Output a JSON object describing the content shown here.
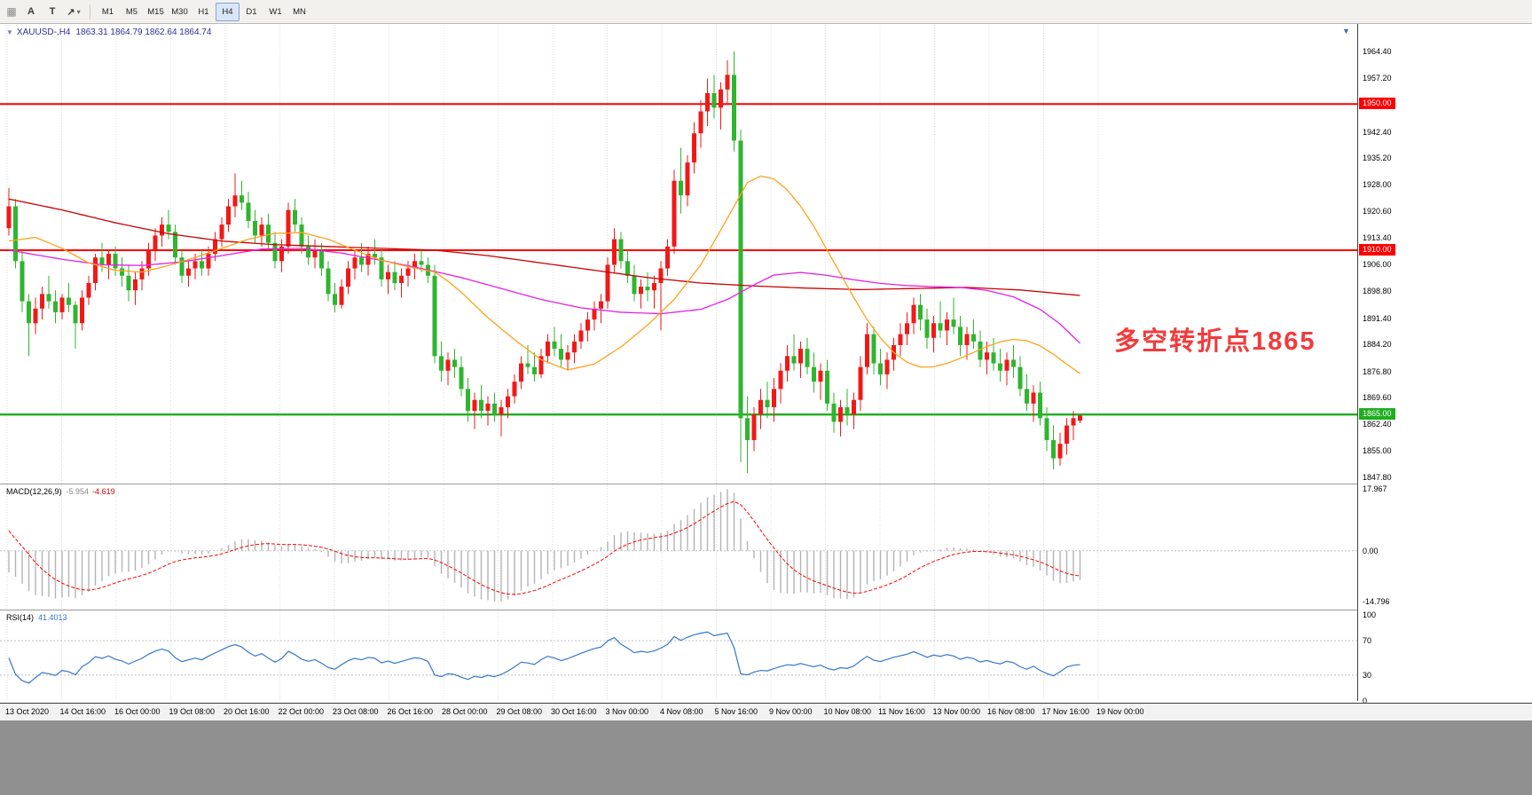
{
  "toolbar": {
    "tools": [
      {
        "name": "drag-grip",
        "glyph": "▦"
      },
      {
        "name": "text-tool",
        "glyph": "A"
      },
      {
        "name": "text-label-tool",
        "glyph": "T"
      },
      {
        "name": "arrows-tool",
        "glyph": "↗"
      }
    ],
    "caret": "▾",
    "timeframes": [
      "M1",
      "M5",
      "M15",
      "M30",
      "H1",
      "H4",
      "D1",
      "W1",
      "MN"
    ],
    "active_timeframe": "H4"
  },
  "chart": {
    "title_symbol": "XAUUSD-,H4",
    "title_ohlc": "1863.31 1864.79 1862.64 1864.74",
    "end_marker": "▼",
    "annotation": "多空转折点1865",
    "macd_label": "MACD(12,26,9)",
    "macd_value_main": "-5.954",
    "macd_value_signal": "-4.619",
    "rsi_label": "RSI(14)",
    "rsi_value": "41.4013"
  },
  "chart_data": {
    "type": "candlestick",
    "symbol": "XAUUSD-",
    "timeframe": "H4",
    "title": "XAUUSD-,H4 1863.31 1864.79 1862.64 1864.74",
    "colors": {
      "up": "#f21818",
      "down": "#2fb52f",
      "ma_slow": "#cc0000",
      "ma_mid": "#e321e3",
      "ma_fast": "#ffa21a",
      "macd_hist": "#b3b3b3",
      "macd_signal": "#ff0000",
      "rsi": "#3377cc",
      "grid": "#dcdcdc",
      "level": "#c0c0c0",
      "resistance": "#ff0000",
      "support": "#1fae1f"
    },
    "hlines": [
      {
        "price": "1950.00",
        "color": "#ff0000",
        "width": 2,
        "role": "resistance"
      },
      {
        "price": "1910.00",
        "color": "#ff0000",
        "width": 2,
        "role": "resistance"
      },
      {
        "price": "1865.00",
        "color": "#1fae1f",
        "width": 2.4,
        "role": "support"
      }
    ],
    "price_ticks": [
      "1964.40",
      "1957.20",
      "1942.40",
      "1935.20",
      "1928.00",
      "1920.60",
      "1913.40",
      "1906.00",
      "1898.80",
      "1891.40",
      "1884.20",
      "1876.80",
      "1869.60",
      "1862.40",
      "1855.00",
      "1847.80"
    ],
    "macd_axis": [
      "17.967",
      "0.00",
      "-14.796"
    ],
    "rsi_axis": [
      "100",
      "70",
      "30",
      "0"
    ],
    "rsi_levels": [
      70,
      30
    ],
    "time_labels": [
      "13 Oct 2020",
      "14 Oct 16:00",
      "16 Oct 00:00",
      "19 Oct 08:00",
      "20 Oct 16:00",
      "22 Oct 00:00",
      "23 Oct 08:00",
      "26 Oct 16:00",
      "28 Oct 00:00",
      "29 Oct 08:00",
      "30 Oct 16:00",
      "3 Nov 00:00",
      "4 Nov 08:00",
      "5 Nov 16:00",
      "9 Nov 00:00",
      "10 Nov 08:00",
      "11 Nov 16:00",
      "13 Nov 00:00",
      "16 Nov 08:00",
      "17 Nov 16:00",
      "19 Nov 00:00"
    ],
    "indicators": {
      "macd": {
        "fast": 12,
        "slow": 26,
        "signal": 9,
        "last_main": -5.954,
        "last_signal": -4.619
      },
      "rsi": {
        "period": 14,
        "last": 41.4013
      }
    },
    "ohlc": [
      [
        1916,
        1927,
        1914,
        1922
      ],
      [
        1922,
        1924,
        1905,
        1907
      ],
      [
        1907,
        1910,
        1893,
        1896
      ],
      [
        1896,
        1898,
        1881,
        1890
      ],
      [
        1890,
        1897,
        1887,
        1894
      ],
      [
        1894,
        1900,
        1891,
        1898
      ],
      [
        1898,
        1903,
        1894,
        1896
      ],
      [
        1896,
        1899,
        1890,
        1893
      ],
      [
        1893,
        1898,
        1891,
        1897
      ],
      [
        1897,
        1901,
        1893,
        1895
      ],
      [
        1895,
        1896,
        1883,
        1890
      ],
      [
        1890,
        1899,
        1888,
        1897
      ],
      [
        1897,
        1903,
        1895,
        1901
      ],
      [
        1901,
        1909,
        1899,
        1908
      ],
      [
        1908,
        1912,
        1904,
        1906
      ],
      [
        1906,
        1910,
        1902,
        1909
      ],
      [
        1909,
        1911,
        1903,
        1905
      ],
      [
        1905,
        1908,
        1900,
        1903
      ],
      [
        1903,
        1906,
        1896,
        1899
      ],
      [
        1899,
        1904,
        1895,
        1902
      ],
      [
        1902,
        1907,
        1899,
        1905
      ],
      [
        1905,
        1912,
        1903,
        1910
      ],
      [
        1910,
        1916,
        1907,
        1914
      ],
      [
        1914,
        1919,
        1911,
        1917
      ],
      [
        1917,
        1921,
        1913,
        1915
      ],
      [
        1915,
        1917,
        1906,
        1908
      ],
      [
        1908,
        1910,
        1901,
        1903
      ],
      [
        1903,
        1907,
        1900,
        1905
      ],
      [
        1905,
        1909,
        1902,
        1907
      ],
      [
        1907,
        1910,
        1903,
        1905
      ],
      [
        1905,
        1911,
        1903,
        1909
      ],
      [
        1909,
        1915,
        1907,
        1913
      ],
      [
        1913,
        1919,
        1911,
        1917
      ],
      [
        1917,
        1924,
        1915,
        1922
      ],
      [
        1922,
        1931,
        1919,
        1925
      ],
      [
        1925,
        1929,
        1921,
        1923
      ],
      [
        1923,
        1926,
        1916,
        1918
      ],
      [
        1918,
        1921,
        1912,
        1914
      ],
      [
        1914,
        1919,
        1911,
        1917
      ],
      [
        1917,
        1920,
        1910,
        1912
      ],
      [
        1912,
        1915,
        1905,
        1907
      ],
      [
        1907,
        1913,
        1904,
        1911
      ],
      [
        1911,
        1923,
        1909,
        1921
      ],
      [
        1921,
        1924,
        1915,
        1917
      ],
      [
        1917,
        1919,
        1909,
        1911
      ],
      [
        1911,
        1914,
        1906,
        1908
      ],
      [
        1908,
        1913,
        1905,
        1910
      ],
      [
        1910,
        1912,
        1903,
        1905
      ],
      [
        1905,
        1907,
        1896,
        1898
      ],
      [
        1898,
        1901,
        1893,
        1895
      ],
      [
        1895,
        1902,
        1894,
        1900
      ],
      [
        1900,
        1907,
        1898,
        1905
      ],
      [
        1905,
        1910,
        1902,
        1908
      ],
      [
        1908,
        1912,
        1904,
        1906
      ],
      [
        1906,
        1911,
        1903,
        1909
      ],
      [
        1909,
        1913,
        1906,
        1908
      ],
      [
        1908,
        1910,
        1900,
        1902
      ],
      [
        1902,
        1906,
        1898,
        1904
      ],
      [
        1904,
        1907,
        1899,
        1901
      ],
      [
        1901,
        1905,
        1897,
        1903
      ],
      [
        1903,
        1907,
        1900,
        1905
      ],
      [
        1905,
        1909,
        1902,
        1907
      ],
      [
        1907,
        1910,
        1904,
        1906
      ],
      [
        1906,
        1908,
        1901,
        1903
      ],
      [
        1903,
        1906,
        1879,
        1881
      ],
      [
        1881,
        1885,
        1874,
        1877
      ],
      [
        1877,
        1882,
        1873,
        1880
      ],
      [
        1880,
        1883,
        1875,
        1878
      ],
      [
        1878,
        1881,
        1870,
        1872
      ],
      [
        1872,
        1875,
        1863,
        1866
      ],
      [
        1866,
        1871,
        1861,
        1869
      ],
      [
        1869,
        1873,
        1864,
        1866
      ],
      [
        1866,
        1870,
        1862,
        1868
      ],
      [
        1868,
        1871,
        1863,
        1865
      ],
      [
        1865,
        1869,
        1859,
        1867
      ],
      [
        1867,
        1872,
        1864,
        1870
      ],
      [
        1870,
        1876,
        1868,
        1874
      ],
      [
        1874,
        1881,
        1872,
        1879
      ],
      [
        1879,
        1884,
        1876,
        1878
      ],
      [
        1878,
        1882,
        1874,
        1876
      ],
      [
        1876,
        1883,
        1875,
        1881
      ],
      [
        1881,
        1887,
        1879,
        1885
      ],
      [
        1885,
        1889,
        1881,
        1883
      ],
      [
        1883,
        1887,
        1878,
        1880
      ],
      [
        1880,
        1884,
        1877,
        1882
      ],
      [
        1882,
        1887,
        1879,
        1885
      ],
      [
        1885,
        1890,
        1883,
        1888
      ],
      [
        1888,
        1893,
        1885,
        1891
      ],
      [
        1891,
        1896,
        1888,
        1894
      ],
      [
        1894,
        1898,
        1890,
        1896
      ],
      [
        1896,
        1908,
        1894,
        1906
      ],
      [
        1906,
        1916,
        1904,
        1913
      ],
      [
        1913,
        1915,
        1905,
        1907
      ],
      [
        1907,
        1910,
        1901,
        1903
      ],
      [
        1903,
        1906,
        1896,
        1898
      ],
      [
        1898,
        1902,
        1894,
        1900
      ],
      [
        1900,
        1904,
        1896,
        1899
      ],
      [
        1899,
        1903,
        1894,
        1901
      ],
      [
        1901,
        1907,
        1888,
        1905
      ],
      [
        1905,
        1913,
        1903,
        1911
      ],
      [
        1911,
        1932,
        1909,
        1929
      ],
      [
        1929,
        1938,
        1920,
        1925
      ],
      [
        1925,
        1936,
        1922,
        1934
      ],
      [
        1934,
        1945,
        1931,
        1942
      ],
      [
        1942,
        1951,
        1938,
        1948
      ],
      [
        1948,
        1957,
        1944,
        1953
      ],
      [
        1953,
        1958,
        1946,
        1949
      ],
      [
        1949,
        1956,
        1943,
        1954
      ],
      [
        1954,
        1962,
        1950,
        1958
      ],
      [
        1958,
        1964.4,
        1937,
        1940
      ],
      [
        1940,
        1943,
        1852,
        1864
      ],
      [
        1864,
        1870,
        1849,
        1858
      ],
      [
        1858,
        1867,
        1855,
        1865
      ],
      [
        1865,
        1872,
        1861,
        1869
      ],
      [
        1869,
        1874,
        1864,
        1867
      ],
      [
        1867,
        1875,
        1863,
        1872
      ],
      [
        1872,
        1879,
        1868,
        1877
      ],
      [
        1877,
        1884,
        1874,
        1881
      ],
      [
        1881,
        1887,
        1877,
        1879
      ],
      [
        1879,
        1885,
        1875,
        1883
      ],
      [
        1883,
        1886,
        1876,
        1878
      ],
      [
        1878,
        1882,
        1871,
        1874
      ],
      [
        1874,
        1879,
        1869,
        1877
      ],
      [
        1877,
        1880,
        1866,
        1868
      ],
      [
        1868,
        1871,
        1860,
        1863
      ],
      [
        1863,
        1869,
        1859,
        1867
      ],
      [
        1867,
        1872,
        1862,
        1865
      ],
      [
        1865,
        1871,
        1861,
        1869
      ],
      [
        1869,
        1881,
        1866,
        1878
      ],
      [
        1878,
        1890,
        1876,
        1887
      ],
      [
        1887,
        1889,
        1876,
        1879
      ],
      [
        1879,
        1883,
        1873,
        1876
      ],
      [
        1876,
        1882,
        1872,
        1880
      ],
      [
        1880,
        1886,
        1877,
        1884
      ],
      [
        1884,
        1890,
        1881,
        1887
      ],
      [
        1887,
        1893,
        1884,
        1890
      ],
      [
        1890,
        1897,
        1887,
        1895
      ],
      [
        1895,
        1898,
        1888,
        1891
      ],
      [
        1891,
        1894,
        1883,
        1886
      ],
      [
        1886,
        1892,
        1882,
        1890
      ],
      [
        1890,
        1896,
        1886,
        1888
      ],
      [
        1888,
        1893,
        1884,
        1891
      ],
      [
        1891,
        1897,
        1887,
        1889
      ],
      [
        1889,
        1892,
        1881,
        1884
      ],
      [
        1884,
        1889,
        1880,
        1887
      ],
      [
        1887,
        1891,
        1883,
        1885
      ],
      [
        1885,
        1888,
        1878,
        1880
      ],
      [
        1880,
        1885,
        1876,
        1882
      ],
      [
        1882,
        1886,
        1877,
        1879
      ],
      [
        1879,
        1883,
        1874,
        1877
      ],
      [
        1877,
        1882,
        1873,
        1880
      ],
      [
        1880,
        1884,
        1875,
        1878
      ],
      [
        1878,
        1881,
        1870,
        1872
      ],
      [
        1872,
        1876,
        1866,
        1868
      ],
      [
        1868,
        1873,
        1863,
        1871
      ],
      [
        1871,
        1874,
        1862,
        1864
      ],
      [
        1864,
        1867,
        1855,
        1858
      ],
      [
        1858,
        1862,
        1850,
        1853
      ],
      [
        1853,
        1860,
        1851,
        1857
      ],
      [
        1857,
        1864,
        1854,
        1862
      ],
      [
        1862,
        1866,
        1858,
        1864
      ],
      [
        1863.31,
        1864.79,
        1862.64,
        1864.74
      ]
    ],
    "ma_slow": [
      [
        0,
        1924
      ],
      [
        8,
        1921
      ],
      [
        16,
        1917.5
      ],
      [
        24,
        1914.5
      ],
      [
        32,
        1912.5
      ],
      [
        40,
        1911.5
      ],
      [
        48,
        1911
      ],
      [
        56,
        1910.5
      ],
      [
        64,
        1910
      ],
      [
        72,
        1908.5
      ],
      [
        80,
        1906.5
      ],
      [
        88,
        1904.5
      ],
      [
        96,
        1902.5
      ],
      [
        104,
        1901
      ],
      [
        112,
        1900.2
      ],
      [
        120,
        1899.6
      ],
      [
        128,
        1899.2
      ],
      [
        136,
        1899.5
      ],
      [
        144,
        1899.8
      ],
      [
        152,
        1899.1
      ],
      [
        161,
        1897.6
      ]
    ],
    "ma_mid": [
      [
        0,
        1910
      ],
      [
        8,
        1907.5
      ],
      [
        14,
        1906
      ],
      [
        20,
        1905.8
      ],
      [
        26,
        1906.8
      ],
      [
        32,
        1908.5
      ],
      [
        38,
        1910.3
      ],
      [
        44,
        1910.5
      ],
      [
        50,
        1909.2
      ],
      [
        56,
        1907.2
      ],
      [
        62,
        1905
      ],
      [
        68,
        1902.5
      ],
      [
        74,
        1899.5
      ],
      [
        80,
        1896.5
      ],
      [
        86,
        1894.2
      ],
      [
        92,
        1893
      ],
      [
        98,
        1892.6
      ],
      [
        104,
        1893.8
      ],
      [
        108,
        1896.5
      ],
      [
        112,
        1900.5
      ],
      [
        115,
        1903.2
      ],
      [
        119,
        1903.9
      ],
      [
        123,
        1903.1
      ],
      [
        127,
        1901.9
      ],
      [
        131,
        1900.9
      ],
      [
        135,
        1900.3
      ],
      [
        139,
        1900
      ],
      [
        143,
        1899.8
      ],
      [
        147,
        1899
      ],
      [
        151,
        1897.2
      ],
      [
        155,
        1893.8
      ],
      [
        158,
        1889.8
      ],
      [
        161,
        1884.5
      ]
    ],
    "ma_fast": [
      [
        0,
        1912.5
      ],
      [
        4,
        1913.5
      ],
      [
        8,
        1910.5
      ],
      [
        12,
        1906.5
      ],
      [
        16,
        1904.5
      ],
      [
        20,
        1904
      ],
      [
        24,
        1905.8
      ],
      [
        28,
        1908
      ],
      [
        32,
        1910.5
      ],
      [
        36,
        1913
      ],
      [
        40,
        1914.6
      ],
      [
        44,
        1914.8
      ],
      [
        48,
        1913
      ],
      [
        52,
        1910
      ],
      [
        56,
        1907.2
      ],
      [
        60,
        1905.5
      ],
      [
        64,
        1904
      ],
      [
        66,
        1901.5
      ],
      [
        68,
        1898.5
      ],
      [
        72,
        1891.5
      ],
      [
        76,
        1885.5
      ],
      [
        80,
        1880
      ],
      [
        84,
        1877.2
      ],
      [
        88,
        1878.8
      ],
      [
        92,
        1883.5
      ],
      [
        96,
        1889.5
      ],
      [
        100,
        1896.5
      ],
      [
        104,
        1906
      ],
      [
        107,
        1915.5
      ],
      [
        109,
        1922
      ],
      [
        111,
        1928.5
      ],
      [
        113,
        1930.3
      ],
      [
        115,
        1929.5
      ],
      [
        117,
        1926.5
      ],
      [
        119,
        1922
      ],
      [
        121,
        1916.5
      ],
      [
        123,
        1910
      ],
      [
        125,
        1903.5
      ],
      [
        127,
        1897
      ],
      [
        129,
        1891
      ],
      [
        131,
        1886
      ],
      [
        133,
        1882
      ],
      [
        135,
        1879.3
      ],
      [
        137,
        1878
      ],
      [
        139,
        1878.1
      ],
      [
        141,
        1879
      ],
      [
        143,
        1880.4
      ],
      [
        145,
        1882
      ],
      [
        147,
        1883.6
      ],
      [
        149,
        1884.9
      ],
      [
        151,
        1885.6
      ],
      [
        153,
        1885.2
      ],
      [
        155,
        1883.8
      ],
      [
        157,
        1881.5
      ],
      [
        159,
        1878.8
      ],
      [
        161,
        1876.2
      ]
    ]
  }
}
